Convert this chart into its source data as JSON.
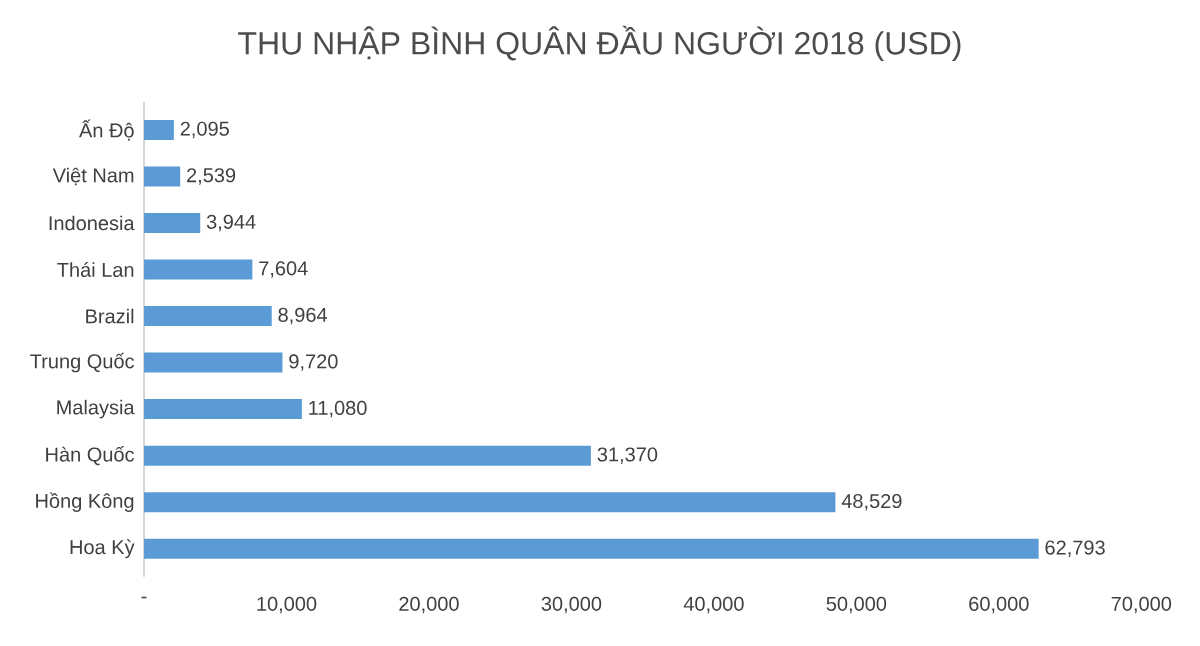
{
  "chart_data": {
    "type": "bar",
    "orientation": "horizontal",
    "title": "THU NHẬP BÌNH QUÂN ĐẦU NGƯỜI 2018 (USD)",
    "categories": [
      "Ấn Độ",
      "Việt Nam",
      "Indonesia",
      "Thái Lan",
      "Brazil",
      "Trung Quốc",
      "Malaysia",
      "Hàn Quốc",
      "Hồng Kông",
      "Hoa Kỳ"
    ],
    "values": [
      2095,
      2539,
      3944,
      7604,
      8964,
      9720,
      11080,
      31370,
      48529,
      62793
    ],
    "value_labels": [
      "2,095",
      "2,539",
      "3,944",
      "7,604",
      "8,964",
      "9,720",
      "11,080",
      "31,370",
      "48,529",
      "62,793"
    ],
    "color": "#5b9bd5",
    "xlim": [
      0,
      70000
    ],
    "xticks": [
      {
        "value": 0,
        "label": "-"
      },
      {
        "value": 10000,
        "label": "10,000"
      },
      {
        "value": 20000,
        "label": "20,000"
      },
      {
        "value": 30000,
        "label": "30,000"
      },
      {
        "value": 40000,
        "label": "40,000"
      },
      {
        "value": 50000,
        "label": "50,000"
      },
      {
        "value": 60000,
        "label": "60,000"
      },
      {
        "value": 70000,
        "label": "70,000"
      }
    ]
  }
}
